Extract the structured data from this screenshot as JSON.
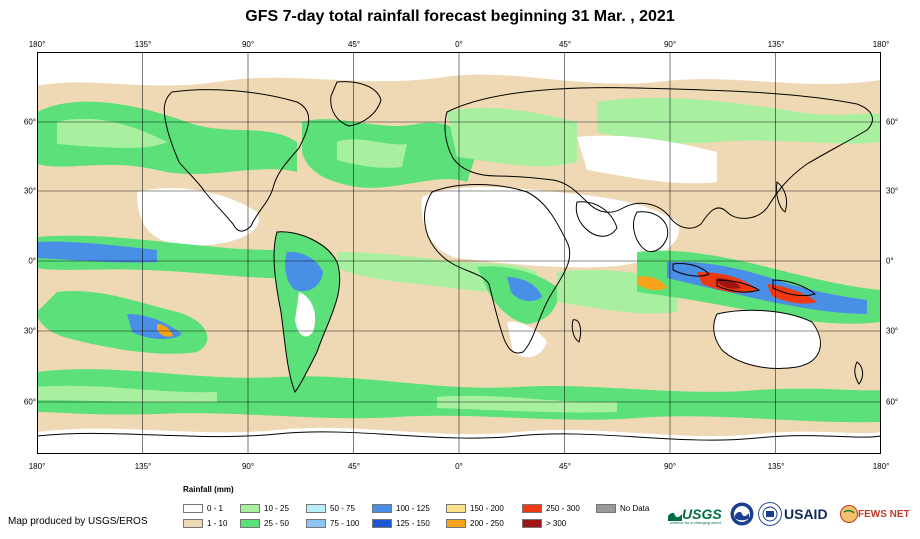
{
  "title": "GFS 7-day total rainfall forecast beginning 31 Mar. , 2021",
  "longitude_ticks": [
    "180°",
    "135°",
    "90°",
    "45°",
    "0°",
    "45°",
    "90°",
    "135°",
    "180°"
  ],
  "latitude_ticks": [
    "60°",
    "30°",
    "0°",
    "30°",
    "60°"
  ],
  "legend": {
    "title": "Rainfall (mm)",
    "items": [
      {
        "label": "0 - 1",
        "color": "#ffffff"
      },
      {
        "label": "1 - 10",
        "color": "#efd9b4"
      },
      {
        "label": "10 - 25",
        "color": "#a8f0a0"
      },
      {
        "label": "25 - 50",
        "color": "#5ce07a"
      },
      {
        "label": "50 - 75",
        "color": "#b8eef8"
      },
      {
        "label": "75 - 100",
        "color": "#8cc4f4"
      },
      {
        "label": "100 - 125",
        "color": "#4a8fe6"
      },
      {
        "label": "125 - 150",
        "color": "#1c56d2"
      },
      {
        "label": "150 - 200",
        "color": "#fde28a"
      },
      {
        "label": "200 - 250",
        "color": "#f9a21a"
      },
      {
        "label": "250 - 300",
        "color": "#ee3a10"
      },
      {
        "label": "> 300",
        "color": "#a21515"
      },
      {
        "label": "No Data",
        "color": "#9a9a9a"
      }
    ]
  },
  "credit": "Map produced by USGS/EROS",
  "logos": {
    "usgs": "USGS",
    "usgs_tagline": "science for a changing world",
    "usaid": "USAID",
    "fews": "FEWS NET"
  }
}
